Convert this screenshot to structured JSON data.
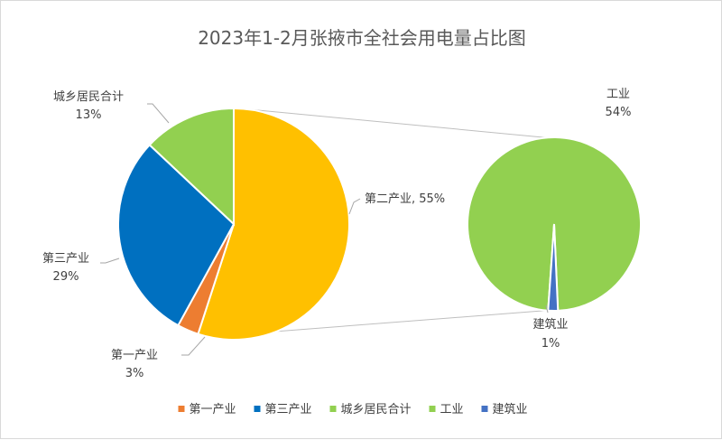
{
  "chart_data": {
    "type": "pie-of-pie",
    "title": "2023年1-2月张掖市全社会用电量占比图",
    "main_pie": {
      "slices": [
        {
          "name": "第二产业",
          "value": 55,
          "label": "第二产业, 55%",
          "color": "#FFC000"
        },
        {
          "name": "第一产业",
          "value": 3,
          "label_name": "第一产业",
          "label_pct": "3%",
          "color": "#ED7D31"
        },
        {
          "name": "第三产业",
          "value": 29,
          "label_name": "第三产业",
          "label_pct": "29%",
          "color": "#0070C0"
        },
        {
          "name": "城乡居民合计",
          "value": 13,
          "label_name": "城乡居民合计",
          "label_pct": "13%",
          "color": "#92D050"
        }
      ]
    },
    "sub_pie": {
      "slices": [
        {
          "name": "工业",
          "value": 54,
          "label_name": "工业",
          "label_pct": "54%",
          "color": "#92D050"
        },
        {
          "name": "建筑业",
          "value": 1,
          "label_name": "建筑业",
          "label_pct": "1%",
          "color": "#4472C4"
        }
      ]
    },
    "legend": [
      {
        "label": "第一产业",
        "color": "#ED7D31"
      },
      {
        "label": "第三产业",
        "color": "#0070C0"
      },
      {
        "label": "城乡居民合计",
        "color": "#92D050"
      },
      {
        "label": "工业",
        "color": "#92D050"
      },
      {
        "label": "建筑业",
        "color": "#4472C4"
      }
    ],
    "legend_position": "bottom"
  }
}
